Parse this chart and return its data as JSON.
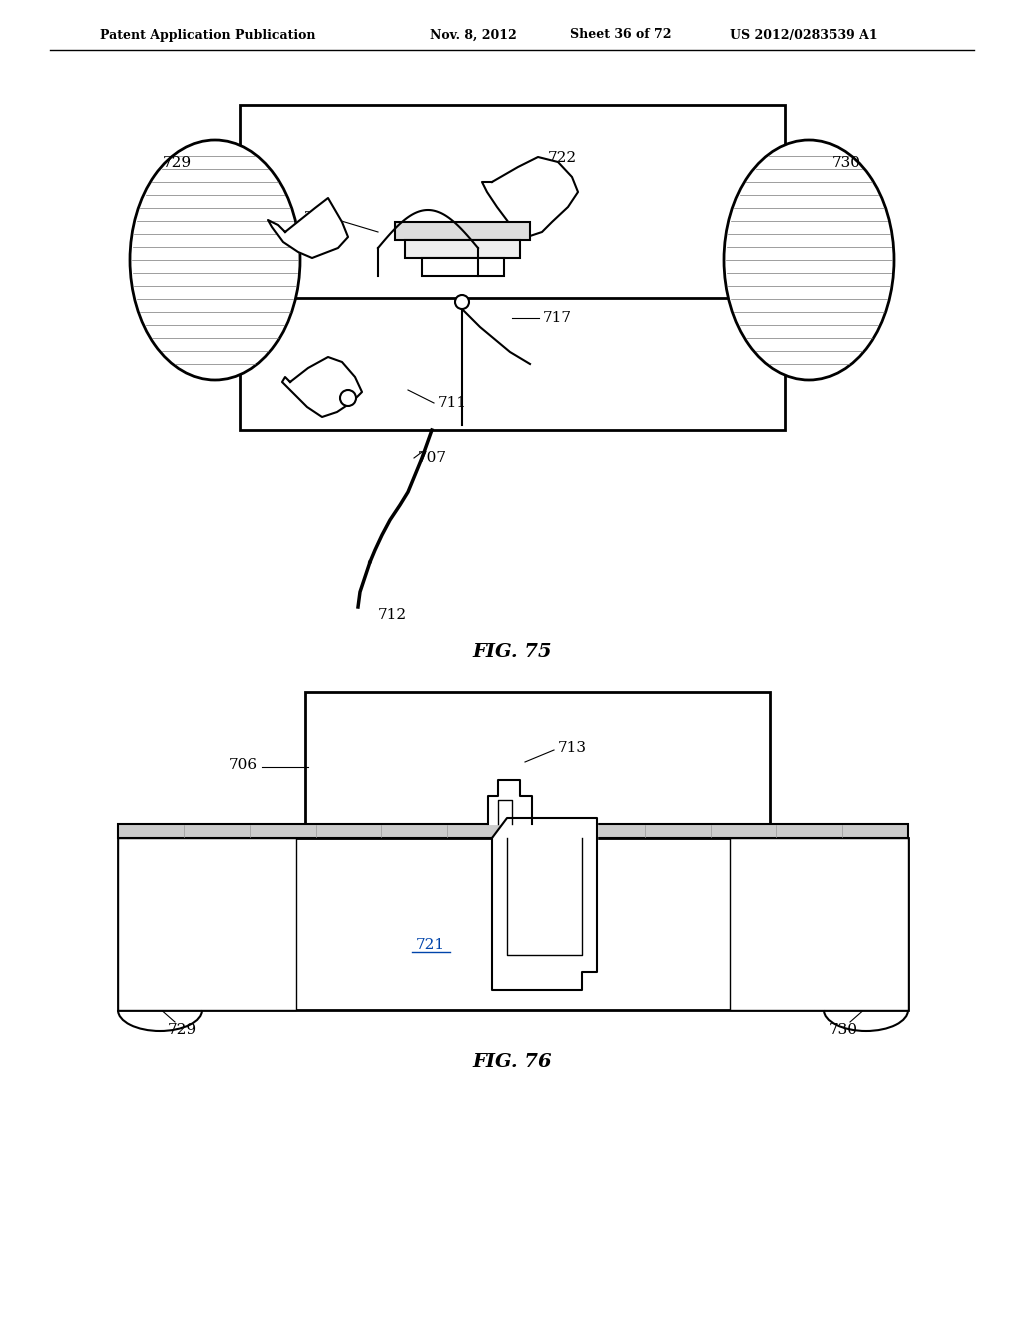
{
  "bg_color": "#ffffff",
  "header_text": "Patent Application Publication",
  "header_date": "Nov. 8, 2012",
  "header_sheet": "Sheet 36 of 72",
  "header_patent": "US 2012/0283539 A1",
  "fig75_label": "FIG. 75",
  "fig76_label": "FIG. 76",
  "line_color": "#000000",
  "line_color_light": "#888888",
  "label_color": "#000000"
}
